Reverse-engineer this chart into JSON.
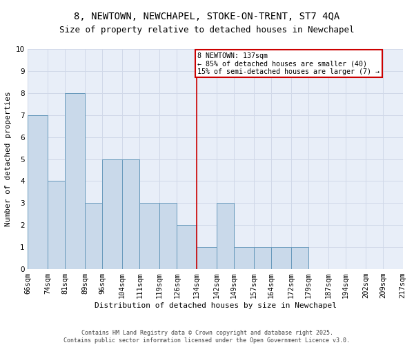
{
  "title": "8, NEWTOWN, NEWCHAPEL, STOKE-ON-TRENT, ST7 4QA",
  "subtitle": "Size of property relative to detached houses in Newchapel",
  "xlabel": "Distribution of detached houses by size in Newchapel",
  "ylabel": "Number of detached properties",
  "bin_edges": [
    66,
    74,
    81,
    89,
    96,
    104,
    111,
    119,
    126,
    134,
    142,
    149,
    157,
    164,
    172,
    179,
    187,
    194,
    202,
    209,
    217
  ],
  "bin_labels": [
    "66sqm",
    "74sqm",
    "81sqm",
    "89sqm",
    "96sqm",
    "104sqm",
    "111sqm",
    "119sqm",
    "126sqm",
    "134sqm",
    "142sqm",
    "149sqm",
    "157sqm",
    "164sqm",
    "172sqm",
    "179sqm",
    "187sqm",
    "194sqm",
    "202sqm",
    "209sqm",
    "217sqm"
  ],
  "values": [
    7,
    4,
    8,
    3,
    5,
    5,
    3,
    3,
    2,
    1,
    3,
    1,
    1,
    1,
    1,
    0,
    0,
    0,
    0,
    0
  ],
  "bar_color": "#c9d9ea",
  "bar_edge_color": "#6699bb",
  "grid_color": "#d0d8e8",
  "background_color": "#e8eef8",
  "vline_x": 134,
  "vline_color": "#cc0000",
  "annotation_text": "8 NEWTOWN: 137sqm\n← 85% of detached houses are smaller (40)\n15% of semi-detached houses are larger (7) →",
  "annotation_box_color": "#cc0000",
  "ylim": [
    0,
    10
  ],
  "yticks": [
    0,
    1,
    2,
    3,
    4,
    5,
    6,
    7,
    8,
    9,
    10
  ],
  "footer": "Contains HM Land Registry data © Crown copyright and database right 2025.\nContains public sector information licensed under the Open Government Licence v3.0.",
  "title_fontsize": 10,
  "subtitle_fontsize": 9,
  "axis_label_fontsize": 8,
  "tick_fontsize": 7.5
}
